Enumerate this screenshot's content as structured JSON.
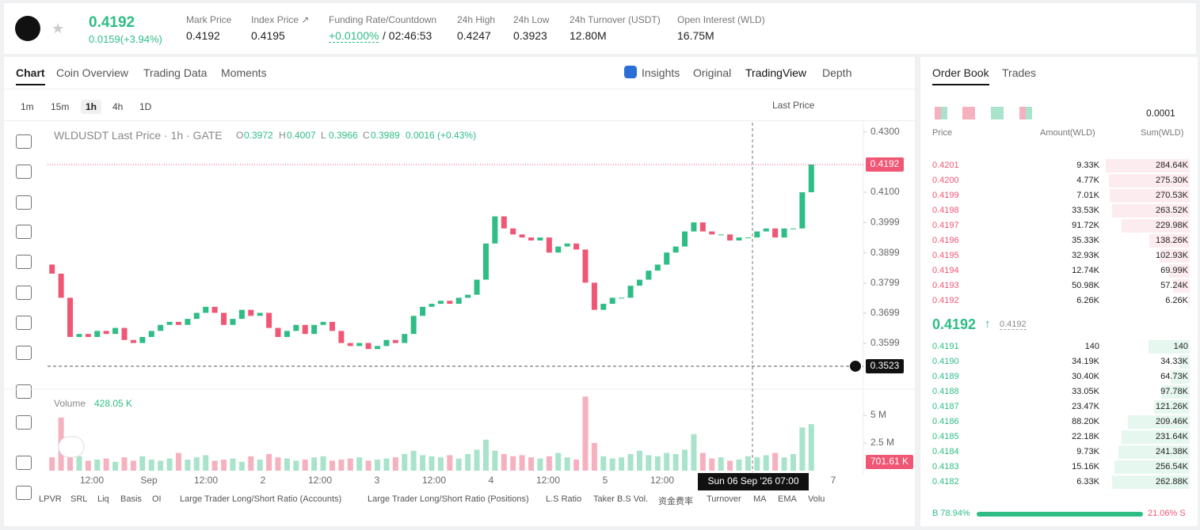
{
  "header": {
    "price": "0.4192",
    "change": "0.0159(+3.94%)",
    "stats": [
      {
        "label": "Mark Price",
        "value": "0.4192"
      },
      {
        "label": "Index Price ↗",
        "value": "0.4195"
      },
      {
        "label": "Funding Rate/Countdown",
        "value": "+0.0100%",
        "extra": "/ 02:46:53"
      },
      {
        "label": "24h High",
        "value": "0.4247"
      },
      {
        "label": "24h Low",
        "value": "0.3923"
      },
      {
        "label": "24h Turnover (USDT)",
        "value": "12.80M"
      },
      {
        "label": "Open Interest (WLD)",
        "value": "16.75M"
      }
    ]
  },
  "tabs": [
    "Chart",
    "Coin Overview",
    "Trading Data",
    "Moments"
  ],
  "views": [
    "Insights",
    "Original",
    "TradingView",
    "Depth"
  ],
  "intervals": [
    "1m",
    "15m",
    "1h",
    "4h",
    "1D"
  ],
  "price_source": "Last Price",
  "legend": {
    "title": "WLDUSDT Last Price · 1h · GATE",
    "o": "O",
    "ov": "0.3972",
    "h": "H",
    "hv": "0.4007",
    "l": "L",
    "lv": "0.3966",
    "c": "C",
    "cv": "0.3989",
    "chg": "0.0016 (+0.43%)"
  },
  "volume_legend": {
    "label": "Volume",
    "value": "428.05 K"
  },
  "chart_data": {
    "type": "candlestick",
    "x_labels": [
      "12:00",
      "Sep",
      "12:00",
      "2",
      "12:00",
      "3",
      "12:00",
      "4",
      "12:00",
      "5",
      "12:00",
      null,
      null,
      "7"
    ],
    "crosshair_label": "Sun 06 Sep '26   07:00",
    "last_price_tag": {
      "value": 0.4192,
      "label": "0.4192"
    },
    "crosshair_tag": {
      "value": 0.3523,
      "label": "0.3523"
    },
    "ylim": [
      0.3452,
      0.4331
    ],
    "yticks": [
      {
        "value": 0.43,
        "label": "0.4300"
      },
      {
        "value": 0.41,
        "label": "0.4100"
      },
      {
        "value": 0.3999,
        "label": "0.3999"
      },
      {
        "value": 0.3899,
        "label": "0.3899"
      },
      {
        "value": 0.3799,
        "label": "0.3799"
      },
      {
        "value": 0.3699,
        "label": "0.3699"
      },
      {
        "value": 0.3599,
        "label": "0.3599"
      }
    ],
    "open": [
      0.386,
      0.383,
      0.375,
      0.362,
      0.363,
      0.362,
      0.364,
      0.363,
      0.365,
      0.361,
      0.36,
      0.362,
      0.364,
      0.366,
      0.367,
      0.366,
      0.368,
      0.37,
      0.372,
      0.37,
      0.366,
      0.368,
      0.371,
      0.369,
      0.37,
      0.365,
      0.362,
      0.364,
      0.366,
      0.363,
      0.366,
      0.367,
      0.364,
      0.36,
      0.359,
      0.36,
      0.358,
      0.359,
      0.361,
      0.36,
      0.363,
      0.369,
      0.372,
      0.373,
      0.374,
      0.373,
      0.375,
      0.376,
      0.381,
      0.393,
      0.402,
      0.398,
      0.396,
      0.395,
      0.394,
      0.395,
      0.39,
      0.392,
      0.393,
      0.391,
      0.38,
      0.371,
      0.373,
      0.375,
      0.375,
      0.379,
      0.381,
      0.384,
      0.386,
      0.39,
      0.392,
      0.397,
      0.4,
      0.397,
      0.396,
      0.396,
      0.394,
      0.395,
      0.395,
      0.397,
      0.398,
      0.395,
      0.398,
      0.398,
      0.41
    ],
    "close": [
      0.383,
      0.375,
      0.362,
      0.363,
      0.362,
      0.364,
      0.363,
      0.365,
      0.361,
      0.36,
      0.362,
      0.364,
      0.366,
      0.367,
      0.366,
      0.368,
      0.37,
      0.372,
      0.37,
      0.366,
      0.368,
      0.371,
      0.369,
      0.37,
      0.365,
      0.362,
      0.364,
      0.366,
      0.363,
      0.366,
      0.367,
      0.364,
      0.36,
      0.359,
      0.36,
      0.358,
      0.359,
      0.361,
      0.36,
      0.363,
      0.369,
      0.372,
      0.373,
      0.374,
      0.373,
      0.375,
      0.376,
      0.381,
      0.393,
      0.402,
      0.398,
      0.396,
      0.395,
      0.394,
      0.395,
      0.39,
      0.392,
      0.393,
      0.391,
      0.38,
      0.371,
      0.373,
      0.375,
      0.375,
      0.379,
      0.381,
      0.384,
      0.386,
      0.39,
      0.392,
      0.397,
      0.4,
      0.397,
      0.396,
      0.396,
      0.394,
      0.395,
      0.395,
      0.397,
      0.398,
      0.395,
      0.398,
      0.398,
      0.41,
      0.4192
    ],
    "volume": [
      1200000,
      4800000,
      1500000,
      1300000,
      900000,
      1000000,
      1100000,
      800000,
      1200000,
      900000,
      1300000,
      1000000,
      900000,
      1100000,
      1600000,
      1000000,
      1200000,
      1400000,
      900000,
      1000000,
      1100000,
      800000,
      1300000,
      1000000,
      1500000,
      1200000,
      1100000,
      900000,
      1000000,
      1200000,
      1300000,
      900000,
      1000000,
      1100000,
      1200000,
      900000,
      1000000,
      1100000,
      1200000,
      1500000,
      1800000,
      1400000,
      1300000,
      1200000,
      1400000,
      1100000,
      1500000,
      1900000,
      2800000,
      1800000,
      1500000,
      1300000,
      1400000,
      1200000,
      1100000,
      1300000,
      1600000,
      1200000,
      1000000,
      6700000,
      2500000,
      1300000,
      1100000,
      1200000,
      1500000,
      1800000,
      1400000,
      1300000,
      1600000,
      1500000,
      1900000,
      3300000,
      1600000,
      1100000,
      1200000,
      900000,
      1000000,
      1300000,
      1200000,
      1400000,
      1600000,
      1200000,
      1500000,
      3900000,
      4200000
    ],
    "volume_ylim": [
      0,
      7000000
    ],
    "volume_ticks": [
      {
        "value": 5000000,
        "label": "5 M"
      },
      {
        "value": 2500000,
        "label": "2.5 M"
      }
    ],
    "volume_tag": "701.61 K",
    "colors": {
      "up": "#2ebd85",
      "down": "#ef5774",
      "up_vol": "#a9e3cb",
      "down_vol": "#f6b1be"
    }
  },
  "indicators": [
    "LPVR",
    "SRL",
    "Liq",
    "Basis",
    "OI",
    "Large Trader Long/Short Ratio (Accounts)",
    "Large Trader Long/Short Ratio (Positions)",
    "L.S Ratio",
    "Taker B.S Vol.",
    "资金费率",
    "Turnover",
    "MA",
    "EMA",
    "Volu"
  ],
  "order_book": {
    "tabs": [
      "Order Book",
      "Trades"
    ],
    "precision": "0.0001",
    "columns": [
      "Price",
      "Amount(WLD)",
      "Sum(WLD)"
    ],
    "asks": [
      [
        "0.4201",
        "9.33K",
        "284.64K"
      ],
      [
        "0.4200",
        "4.77K",
        "275.30K"
      ],
      [
        "0.4199",
        "7.01K",
        "270.53K"
      ],
      [
        "0.4198",
        "33.53K",
        "263.52K"
      ],
      [
        "0.4197",
        "91.72K",
        "229.98K"
      ],
      [
        "0.4196",
        "35.33K",
        "138.26K"
      ],
      [
        "0.4195",
        "32.93K",
        "102.93K"
      ],
      [
        "0.4194",
        "12.74K",
        "69.99K"
      ],
      [
        "0.4193",
        "50.98K",
        "57.24K"
      ],
      [
        "0.4192",
        "6.26K",
        "6.26K"
      ]
    ],
    "mid": "0.4192",
    "mid_arrow": "↑",
    "mark": "0.4192",
    "bids": [
      [
        "0.4191",
        "140",
        "140"
      ],
      [
        "0.4190",
        "34.19K",
        "34.33K"
      ],
      [
        "0.4189",
        "30.40K",
        "64.73K"
      ],
      [
        "0.4188",
        "33.05K",
        "97.78K"
      ],
      [
        "0.4187",
        "23.47K",
        "121.26K"
      ],
      [
        "0.4186",
        "88.20K",
        "209.46K"
      ],
      [
        "0.4185",
        "22.18K",
        "231.64K"
      ],
      [
        "0.4184",
        "9.73K",
        "241.38K"
      ],
      [
        "0.4183",
        "15.16K",
        "256.54K"
      ],
      [
        "0.4182",
        "6.33K",
        "262.88K"
      ]
    ],
    "ratio": {
      "values": [
        78.94,
        21.06
      ],
      "value_labels": [
        "B 78.94%",
        "21.06% S"
      ]
    }
  }
}
